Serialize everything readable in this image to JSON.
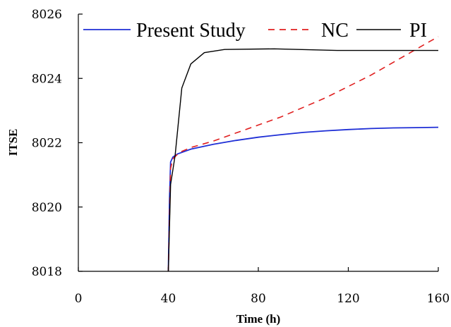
{
  "chart_data": {
    "type": "line",
    "title": "",
    "xlabel": "Time (h)",
    "ylabel": "ITSE",
    "xlim": [
      0,
      160
    ],
    "ylim": [
      8018,
      8026
    ],
    "xticks": [
      "0",
      "40",
      "80",
      "120",
      "160"
    ],
    "yticks": [
      "8018",
      "8020",
      "8022",
      "8024",
      "8026"
    ],
    "grid": false,
    "legend_position": "top",
    "series": [
      {
        "name": "Present Study",
        "color": "#1f2fd6",
        "dash": "solid",
        "points": [
          [
            40,
            8018.0
          ],
          [
            40.5,
            8020.2
          ],
          [
            41,
            8021.4
          ],
          [
            42,
            8021.55
          ],
          [
            44,
            8021.65
          ],
          [
            50,
            8021.8
          ],
          [
            60,
            8021.95
          ],
          [
            70,
            8022.07
          ],
          [
            80,
            8022.17
          ],
          [
            90,
            8022.25
          ],
          [
            100,
            8022.32
          ],
          [
            110,
            8022.37
          ],
          [
            120,
            8022.41
          ],
          [
            130,
            8022.44
          ],
          [
            140,
            8022.46
          ],
          [
            150,
            8022.47
          ],
          [
            160,
            8022.48
          ]
        ]
      },
      {
        "name": "NC",
        "color": "#e02020",
        "dash": "dashed",
        "points": [
          [
            40,
            8018.0
          ],
          [
            41,
            8021.2
          ],
          [
            42,
            8021.5
          ],
          [
            45,
            8021.7
          ],
          [
            50,
            8021.85
          ],
          [
            60,
            8022.05
          ],
          [
            70,
            8022.3
          ],
          [
            80,
            8022.55
          ],
          [
            90,
            8022.8
          ],
          [
            100,
            8023.1
          ],
          [
            110,
            8023.4
          ],
          [
            120,
            8023.75
          ],
          [
            130,
            8024.1
          ],
          [
            140,
            8024.5
          ],
          [
            150,
            8024.9
          ],
          [
            160,
            8025.3
          ]
        ]
      },
      {
        "name": "PI",
        "color": "#000000",
        "dash": "solid",
        "points": [
          [
            40,
            8018.0
          ],
          [
            41,
            8020.7
          ],
          [
            43,
            8021.6
          ],
          [
            46,
            8023.7
          ],
          [
            50,
            8024.45
          ],
          [
            56,
            8024.8
          ],
          [
            65,
            8024.9
          ],
          [
            87,
            8024.92
          ],
          [
            115,
            8024.87
          ],
          [
            160,
            8024.87
          ]
        ]
      }
    ]
  }
}
